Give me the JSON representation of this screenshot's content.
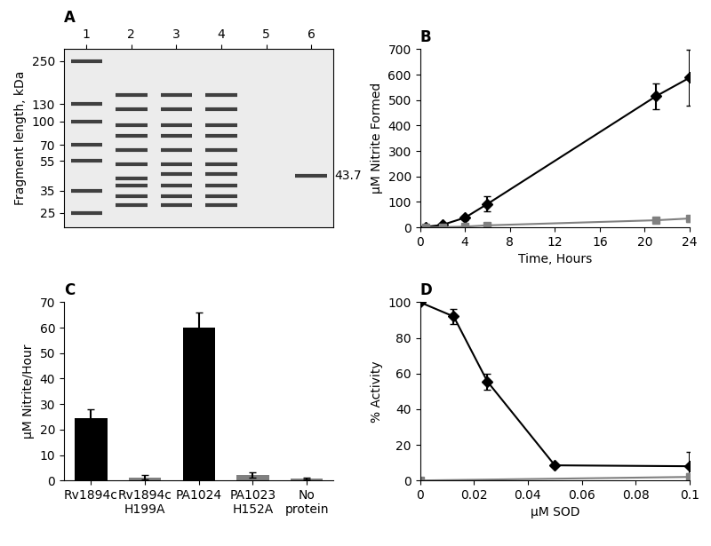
{
  "chart_data": [
    {
      "type": "gel",
      "title": "A",
      "categories": [
        "1",
        "2",
        "3",
        "4",
        "5",
        "6"
      ],
      "bands": [
        [
          250,
          130,
          100,
          70,
          55,
          35,
          25
        ],
        [
          150,
          120,
          95,
          80,
          65,
          52,
          42,
          38,
          32,
          28
        ],
        [
          150,
          120,
          95,
          80,
          65,
          52,
          45,
          38,
          32,
          28
        ],
        [
          150,
          120,
          95,
          80,
          65,
          52,
          45,
          38,
          32,
          28
        ],
        [],
        [
          43.7
        ]
      ],
      "annotations": [
        {
          "lane": "6",
          "value": 43.7,
          "text": "43.7"
        }
      ],
      "ylabel": "Fragment length, kDa",
      "log": "y",
      "ylim": [
        20,
        300
      ],
      "yticks": [
        25,
        35,
        55,
        70,
        100,
        130,
        250
      ],
      "color": "#404040"
    },
    {
      "type": "line",
      "title": "B",
      "xlabel": "Time, Hours",
      "ylabel": "µM Nitrite Formed",
      "xlim": [
        0,
        24
      ],
      "xticks": [
        0,
        4,
        8,
        12,
        16,
        20,
        24
      ],
      "ylim": [
        0,
        700
      ],
      "yticks": [
        0,
        100,
        200,
        300,
        400,
        500,
        600,
        700
      ],
      "series": [
        {
          "color": "#000000",
          "marker": "diamond",
          "x": [
            0.5,
            2,
            4,
            6,
            21,
            24
          ],
          "values": [
            2,
            10,
            38,
            92,
            515,
            588
          ],
          "errors": [
            2,
            3,
            8,
            30,
            50,
            110
          ]
        },
        {
          "color": "#808080",
          "marker": "square",
          "x": [
            0.5,
            2,
            4,
            6,
            21,
            24
          ],
          "values": [
            0,
            1,
            3,
            8,
            28,
            35
          ],
          "errors": [
            0,
            1,
            2,
            3,
            8,
            12
          ]
        }
      ]
    },
    {
      "type": "bar",
      "title": "C",
      "ylabel": "µM Nitrite/Hour",
      "categories": [
        "Rv1894c",
        "Rv1894c\nH199A",
        "PA1024",
        "PA1023\nH152A",
        "No\nprotein"
      ],
      "values": [
        24.5,
        1.2,
        60,
        2.2,
        0.8
      ],
      "errors": [
        3.5,
        0.8,
        6,
        1,
        0.3
      ],
      "colors": [
        "#000000",
        "#808080",
        "#000000",
        "#808080",
        "#808080"
      ],
      "ylim": [
        0,
        70
      ],
      "yticks": [
        0,
        10,
        20,
        30,
        40,
        50,
        60,
        70
      ]
    },
    {
      "type": "line",
      "title": "D",
      "xlabel": "µM SOD",
      "ylabel": "% Activity",
      "xlim": [
        0,
        0.1
      ],
      "xticks": [
        0,
        0.02,
        0.04,
        0.06,
        0.08,
        0.1
      ],
      "ylim": [
        0,
        100
      ],
      "yticks": [
        0,
        20,
        40,
        60,
        80,
        100
      ],
      "series": [
        {
          "color": "#000000",
          "marker": "diamond",
          "x": [
            0,
            0.0125,
            0.025,
            0.05,
            0.1
          ],
          "values": [
            100,
            92,
            55.5,
            8.5,
            8
          ],
          "errors": [
            0,
            4,
            4.5,
            0,
            8
          ]
        },
        {
          "color": "#808080",
          "marker": "square",
          "x": [
            0,
            0.1
          ],
          "values": [
            0,
            2
          ],
          "errors": [
            0,
            2
          ]
        }
      ]
    }
  ]
}
